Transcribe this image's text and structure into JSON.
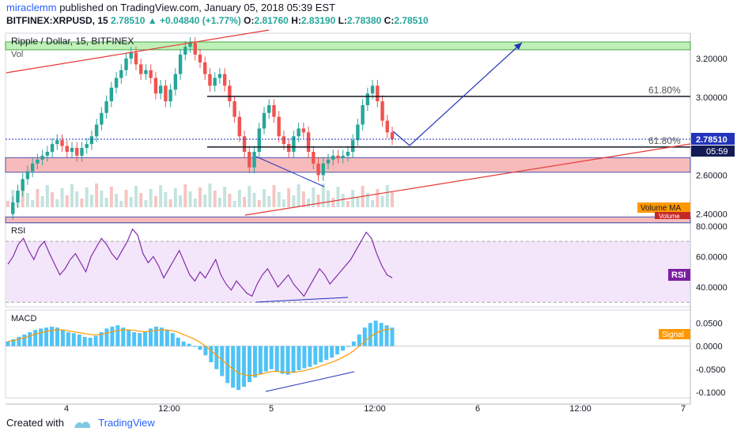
{
  "header": {
    "author": "miraclemm",
    "published_text": "published on TradingView.com, January 05, 2018 05:39 EST",
    "symbol": "BITFINEX:XRPUSD, 15",
    "last": "2.78510",
    "change": "+0.04840 (+1.77%)",
    "o_label": "O:",
    "o_value": "2.81760",
    "h_label": "H:",
    "h_value": "2.83190",
    "l_label": "L:",
    "l_value": "2.78380",
    "c_label": "C:",
    "c_value": "2.78510"
  },
  "footer": {
    "created_with": "Created with",
    "brand": "TradingView"
  },
  "colors": {
    "up": "#26a69a",
    "down": "#ef5350",
    "rsi": "#7b1fa2",
    "macd_hist": "#4fc3f7",
    "signal": "#ff9800",
    "green_zone": "#b7f0b0",
    "red_zone": "#f8b4b4",
    "line_blue": "#2233bb",
    "trend_red": "#e53935"
  },
  "chart_data": [
    {
      "type": "candlestick",
      "title": "Ripple / Dollar, 15, BITFINEX",
      "sub_label": "Vol",
      "price_axis": [
        "3.20000",
        "3.00000",
        "2.60000",
        "2.40000"
      ],
      "price_ticks": [
        3.2,
        3.0,
        2.6,
        2.4
      ],
      "price_range": [
        2.37,
        3.33
      ],
      "last_price_label": "2.78510",
      "countdown_label": "05:59",
      "fib_labels": [
        "61.80%",
        "61.80%"
      ],
      "fib_levels": [
        3.005,
        2.745
      ],
      "zones": [
        {
          "name": "green",
          "from": 3.245,
          "to": 3.285
        },
        {
          "name": "red-upper",
          "from": 2.615,
          "to": 2.69
        },
        {
          "name": "red-lower",
          "from": 2.355,
          "to": 2.385
        }
      ],
      "volume_ma_label": "Volume MA",
      "volume_label": "Volume",
      "close_path": [
        2.4,
        2.46,
        2.52,
        2.58,
        2.62,
        2.66,
        2.68,
        2.7,
        2.72,
        2.76,
        2.78,
        2.75,
        2.72,
        2.74,
        2.7,
        2.74,
        2.76,
        2.8,
        2.86,
        2.92,
        2.98,
        3.05,
        3.1,
        3.14,
        3.2,
        3.23,
        3.17,
        3.12,
        3.14,
        3.1,
        3.02,
        3.06,
        2.98,
        3.04,
        3.12,
        3.22,
        3.26,
        3.28,
        3.22,
        3.18,
        3.12,
        3.06,
        3.1,
        3.12,
        3.06,
        2.98,
        2.9,
        2.8,
        2.72,
        2.64,
        2.72,
        2.84,
        2.92,
        2.96,
        2.9,
        2.8,
        2.76,
        2.72,
        2.8,
        2.84,
        2.82,
        2.72,
        2.66,
        2.6,
        2.66,
        2.68,
        2.7,
        2.69,
        2.7,
        2.72,
        2.78,
        2.86,
        2.96,
        3.02,
        3.06,
        2.98,
        2.88,
        2.82,
        2.785
      ]
    },
    {
      "type": "line",
      "name": "RSI",
      "label": "RSI",
      "axis": [
        "80.0000",
        "60.0000",
        "40.0000"
      ],
      "ticks": [
        80,
        60,
        40
      ],
      "range": [
        27,
        82
      ],
      "bands": [
        30,
        70
      ],
      "values": [
        55,
        60,
        68,
        72,
        64,
        58,
        66,
        70,
        62,
        55,
        48,
        52,
        58,
        62,
        56,
        50,
        60,
        66,
        72,
        68,
        62,
        58,
        64,
        70,
        78,
        74,
        62,
        56,
        60,
        54,
        46,
        52,
        58,
        64,
        56,
        48,
        44,
        50,
        46,
        52,
        58,
        48,
        42,
        38,
        44,
        40,
        36,
        34,
        42,
        48,
        52,
        46,
        40,
        44,
        48,
        42,
        38,
        34,
        40,
        46,
        52,
        48,
        42,
        46,
        50,
        54,
        58,
        64,
        70,
        76,
        72,
        62,
        54,
        48,
        46
      ]
    },
    {
      "type": "bar+line",
      "name": "MACD",
      "label": "MACD",
      "axis": [
        "0.0500",
        "0.0000",
        "-0.0500",
        "-0.1000"
      ],
      "ticks": [
        0.05,
        0,
        -0.05,
        -0.1
      ],
      "range": [
        -0.112,
        0.078
      ],
      "signal_label": "Signal",
      "histogram": [
        0.01,
        0.015,
        0.02,
        0.025,
        0.03,
        0.035,
        0.038,
        0.04,
        0.042,
        0.04,
        0.035,
        0.03,
        0.028,
        0.025,
        0.02,
        0.018,
        0.022,
        0.03,
        0.038,
        0.042,
        0.045,
        0.04,
        0.035,
        0.03,
        0.028,
        0.032,
        0.038,
        0.042,
        0.04,
        0.035,
        0.028,
        0.018,
        0.01,
        0.005,
        0.0,
        -0.008,
        -0.02,
        -0.035,
        -0.05,
        -0.065,
        -0.08,
        -0.09,
        -0.095,
        -0.088,
        -0.078,
        -0.068,
        -0.06,
        -0.055,
        -0.05,
        -0.055,
        -0.06,
        -0.062,
        -0.058,
        -0.052,
        -0.048,
        -0.045,
        -0.04,
        -0.035,
        -0.03,
        -0.025,
        -0.018,
        -0.01,
        0.0,
        0.01,
        0.025,
        0.04,
        0.05,
        0.055,
        0.05,
        0.045,
        0.04
      ],
      "signal": [
        0.01,
        0.012,
        0.015,
        0.018,
        0.022,
        0.026,
        0.029,
        0.032,
        0.034,
        0.035,
        0.035,
        0.033,
        0.031,
        0.029,
        0.027,
        0.025,
        0.024,
        0.025,
        0.028,
        0.031,
        0.034,
        0.035,
        0.035,
        0.034,
        0.032,
        0.031,
        0.032,
        0.034,
        0.035,
        0.035,
        0.033,
        0.03,
        0.025,
        0.02,
        0.015,
        0.008,
        0.0,
        -0.01,
        -0.02,
        -0.03,
        -0.04,
        -0.05,
        -0.058,
        -0.062,
        -0.064,
        -0.063,
        -0.061,
        -0.058,
        -0.055,
        -0.055,
        -0.056,
        -0.057,
        -0.057,
        -0.055,
        -0.053,
        -0.05,
        -0.047,
        -0.043,
        -0.039,
        -0.035,
        -0.03,
        -0.024,
        -0.018,
        -0.01,
        0.0,
        0.01,
        0.02,
        0.028,
        0.033,
        0.036,
        0.037
      ]
    }
  ],
  "time_axis": [
    "4",
    "12:00",
    "5",
    "12:00",
    "6",
    "12:00",
    "7"
  ]
}
